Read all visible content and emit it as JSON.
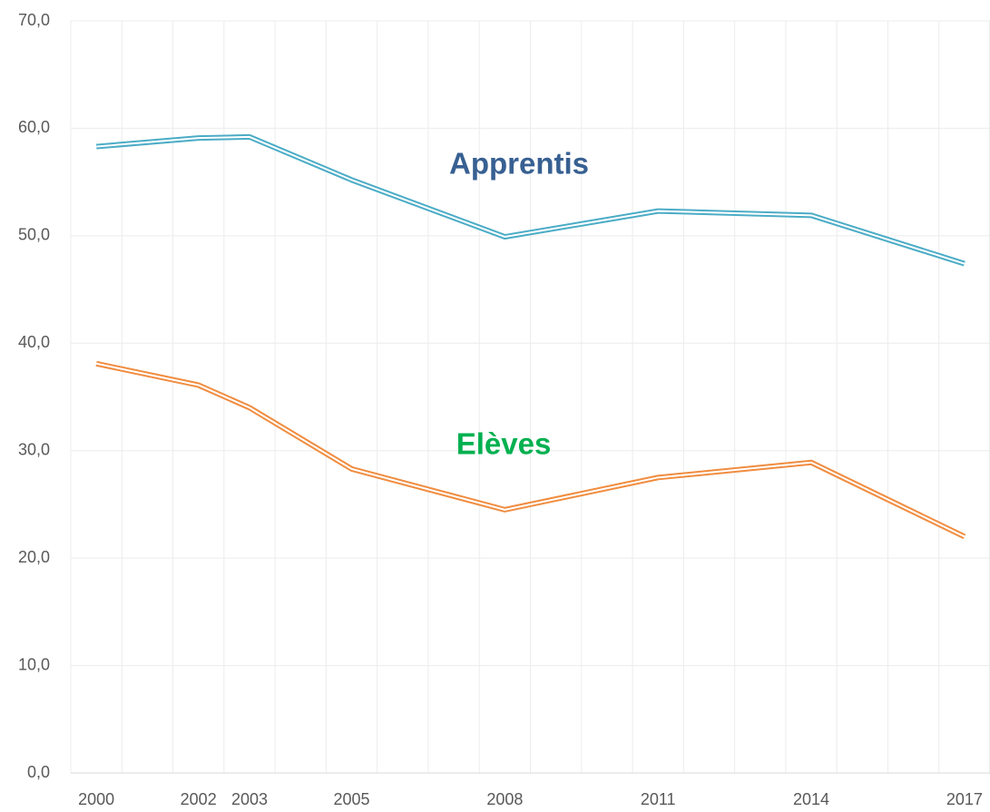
{
  "chart_data": {
    "type": "line",
    "x": [
      2000,
      2002,
      2003,
      2005,
      2008,
      2011,
      2014,
      2017
    ],
    "series": [
      {
        "name": "Apprentis",
        "color": "#4bacc6",
        "label_color": "#376092",
        "values": [
          58.3,
          59.1,
          59.2,
          55.2,
          49.9,
          52.3,
          51.9,
          47.4
        ]
      },
      {
        "name": "Elèves",
        "color": "#f08c3f",
        "label_color": "#00b050",
        "values": [
          38.1,
          36.1,
          34.0,
          28.3,
          24.5,
          27.5,
          28.9,
          22.0
        ]
      }
    ],
    "xlim": [
      1999.5,
      2017.5
    ],
    "xticks": [
      2000,
      2002,
      2003,
      2005,
      2008,
      2011,
      2014,
      2017
    ],
    "ylim": [
      0,
      70
    ],
    "yticks": [
      {
        "value": 0,
        "label": "0,0"
      },
      {
        "value": 10,
        "label": "10,0"
      },
      {
        "value": 20,
        "label": "20,0"
      },
      {
        "value": 30,
        "label": "30,0"
      },
      {
        "value": 40,
        "label": "40,0"
      },
      {
        "value": 50,
        "label": "50,0"
      },
      {
        "value": 60,
        "label": "60,0"
      },
      {
        "value": 70,
        "label": "70,0"
      }
    ],
    "grid": true
  }
}
